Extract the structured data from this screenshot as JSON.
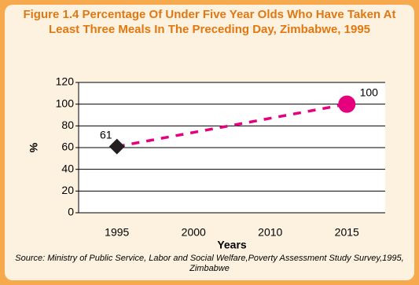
{
  "chart_data": {
    "type": "line",
    "title": "Figure 1.4 Percentage Of Under Five Year Olds Who Have Taken At Least Three Meals In The Preceding Day, Zimbabwe, 1995",
    "source": "Source: Ministry of Public Service, Labor and Social Welfare,Poverty Assessment Study Survey,1995, Zimbabwe",
    "x_label": "Years",
    "y_label": "%",
    "categories": [
      "1995",
      "2000",
      "2010",
      "2015"
    ],
    "values": [
      61,
      null,
      null,
      100
    ],
    "color": "#e5007d",
    "dashed": true,
    "connect_gaps": true,
    "markers": [
      "diamond",
      null,
      null,
      "circle"
    ],
    "marker_colors": [
      "#231f20",
      null,
      null,
      "#e5007d"
    ],
    "ylim": [
      0,
      120
    ],
    "yticks": [
      0,
      20,
      40,
      60,
      80,
      100,
      120
    ],
    "grid": true
  }
}
